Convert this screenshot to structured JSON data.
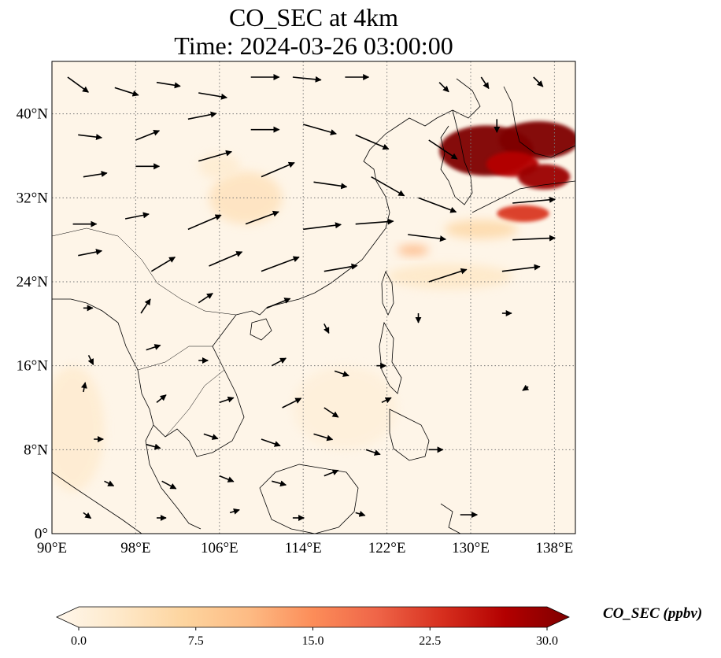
{
  "title": {
    "line1": "CO_SEC at 4km",
    "line2": "Time: 2024-03-26 03:00:00"
  },
  "map": {
    "lon_range": [
      90,
      140
    ],
    "lat_range": [
      0,
      45
    ],
    "lon_ticks": [
      90,
      98,
      106,
      114,
      122,
      130,
      138
    ],
    "lat_ticks": [
      0,
      8,
      16,
      24,
      32,
      40
    ],
    "lon_tick_labels": [
      "90°E",
      "98°E",
      "106°E",
      "114°E",
      "122°E",
      "130°E",
      "138°E"
    ],
    "lat_tick_labels": [
      "0°",
      "8°N",
      "16°N",
      "24°N",
      "32°N",
      "40°N"
    ],
    "gridlines": "dotted",
    "background_color": "#fef5e8",
    "coastline_color": "#000000"
  },
  "colorbar": {
    "label": "CO_SEC (ppbv)",
    "min": 0.0,
    "max": 30.0,
    "ticks": [
      "0.0",
      "7.5",
      "15.0",
      "22.5",
      "30.0"
    ],
    "colormap": "OrRd",
    "extend": "both",
    "colors": [
      "#fff7ec",
      "#fee8c8",
      "#fdd49e",
      "#fdbb84",
      "#fc8d59",
      "#ef6548",
      "#d7301f",
      "#b30000",
      "#7f0000"
    ]
  },
  "concentration_patches": [
    {
      "lon": 131.5,
      "lat": 36.5,
      "rx": 4.5,
      "ry": 2.4,
      "value": 30
    },
    {
      "lon": 136.5,
      "lat": 37.5,
      "rx": 3.8,
      "ry": 1.8,
      "value": 30
    },
    {
      "lon": 134.0,
      "lat": 35.2,
      "rx": 2.5,
      "ry": 1.2,
      "value": 26
    },
    {
      "lon": 137.0,
      "lat": 34.0,
      "rx": 2.5,
      "ry": 1.2,
      "value": 28
    },
    {
      "lon": 135.0,
      "lat": 30.5,
      "rx": 2.5,
      "ry": 0.8,
      "value": 22
    },
    {
      "lon": 131.0,
      "lat": 29.0,
      "rx": 3.5,
      "ry": 0.9,
      "value": 7
    },
    {
      "lon": 124.5,
      "lat": 27.0,
      "rx": 1.5,
      "ry": 0.5,
      "value": 12
    },
    {
      "lon": 108.5,
      "lat": 32.0,
      "rx": 3.5,
      "ry": 2.5,
      "value": 5
    },
    {
      "lon": 106.0,
      "lat": 35.0,
      "rx": 2.0,
      "ry": 1.2,
      "value": 3
    },
    {
      "lon": 128.0,
      "lat": 24.5,
      "rx": 6.0,
      "ry": 1.2,
      "value": 4
    },
    {
      "lon": 92.0,
      "lat": 10.0,
      "rx": 3.0,
      "ry": 6.0,
      "value": 3
    },
    {
      "lon": 118.0,
      "lat": 12.0,
      "rx": 5.0,
      "ry": 4.0,
      "value": 2
    }
  ],
  "wind_vectors": [
    {
      "lon": 91.5,
      "lat": 43.5,
      "u": 2.2,
      "v": -1.6
    },
    {
      "lon": 96.0,
      "lat": 42.5,
      "u": 2.5,
      "v": -0.8
    },
    {
      "lon": 100.0,
      "lat": 43.0,
      "u": 2.5,
      "v": -0.4
    },
    {
      "lon": 104.0,
      "lat": 42.0,
      "u": 3.0,
      "v": -0.5
    },
    {
      "lon": 109.0,
      "lat": 43.5,
      "u": 3.0,
      "v": 0.0
    },
    {
      "lon": 113.0,
      "lat": 43.5,
      "u": 3.0,
      "v": -0.3
    },
    {
      "lon": 118.0,
      "lat": 43.5,
      "u": 2.5,
      "v": 0.0
    },
    {
      "lon": 127.0,
      "lat": 43.0,
      "u": 1.0,
      "v": -1.0
    },
    {
      "lon": 131.0,
      "lat": 43.5,
      "u": 0.8,
      "v": -1.2
    },
    {
      "lon": 136.0,
      "lat": 43.5,
      "u": 1.0,
      "v": -1.0
    },
    {
      "lon": 92.5,
      "lat": 38.0,
      "u": 2.5,
      "v": -0.3
    },
    {
      "lon": 98.0,
      "lat": 37.5,
      "u": 2.5,
      "v": 1.0
    },
    {
      "lon": 103.0,
      "lat": 39.5,
      "u": 3.0,
      "v": 0.6
    },
    {
      "lon": 109.0,
      "lat": 38.5,
      "u": 3.0,
      "v": 0.0
    },
    {
      "lon": 114.0,
      "lat": 39.0,
      "u": 3.5,
      "v": -1.0
    },
    {
      "lon": 119.0,
      "lat": 38.0,
      "u": 3.5,
      "v": -1.5
    },
    {
      "lon": 126.0,
      "lat": 37.5,
      "u": 3.0,
      "v": -2.0
    },
    {
      "lon": 132.5,
      "lat": 39.5,
      "u": 0.0,
      "v": -1.4
    },
    {
      "lon": 93.0,
      "lat": 34.0,
      "u": 2.5,
      "v": 0.4
    },
    {
      "lon": 98.0,
      "lat": 35.0,
      "u": 2.5,
      "v": 0.0
    },
    {
      "lon": 104.0,
      "lat": 35.5,
      "u": 3.5,
      "v": 1.0
    },
    {
      "lon": 110.0,
      "lat": 34.0,
      "u": 3.5,
      "v": 1.5
    },
    {
      "lon": 115.0,
      "lat": 33.5,
      "u": 3.5,
      "v": -0.5
    },
    {
      "lon": 120.5,
      "lat": 34.0,
      "u": 3.5,
      "v": -2.0
    },
    {
      "lon": 125.0,
      "lat": 32.0,
      "u": 4.0,
      "v": -1.5
    },
    {
      "lon": 134.0,
      "lat": 31.5,
      "u": 4.5,
      "v": 0.4
    },
    {
      "lon": 92.0,
      "lat": 29.5,
      "u": 2.5,
      "v": 0.0
    },
    {
      "lon": 97.0,
      "lat": 30.0,
      "u": 2.5,
      "v": 0.5
    },
    {
      "lon": 103.0,
      "lat": 29.0,
      "u": 3.5,
      "v": 1.5
    },
    {
      "lon": 108.5,
      "lat": 29.5,
      "u": 3.5,
      "v": 1.3
    },
    {
      "lon": 114.0,
      "lat": 29.0,
      "u": 4.0,
      "v": 0.5
    },
    {
      "lon": 119.0,
      "lat": 29.5,
      "u": 4.0,
      "v": 0.3
    },
    {
      "lon": 124.0,
      "lat": 28.5,
      "u": 4.0,
      "v": -0.5
    },
    {
      "lon": 134.0,
      "lat": 28.0,
      "u": 4.5,
      "v": 0.2
    },
    {
      "lon": 92.5,
      "lat": 26.5,
      "u": 2.5,
      "v": 0.5
    },
    {
      "lon": 99.5,
      "lat": 25.0,
      "u": 2.5,
      "v": 1.5
    },
    {
      "lon": 105.0,
      "lat": 25.5,
      "u": 3.5,
      "v": 1.5
    },
    {
      "lon": 110.0,
      "lat": 25.0,
      "u": 4.0,
      "v": 1.5
    },
    {
      "lon": 116.0,
      "lat": 25.0,
      "u": 3.5,
      "v": 0.6
    },
    {
      "lon": 126.0,
      "lat": 24.0,
      "u": 4.0,
      "v": 1.3
    },
    {
      "lon": 133.0,
      "lat": 25.0,
      "u": 4.0,
      "v": 0.5
    },
    {
      "lon": 93.0,
      "lat": 21.5,
      "u": 1.0,
      "v": 0.0
    },
    {
      "lon": 98.5,
      "lat": 21.0,
      "u": 1.0,
      "v": 1.5
    },
    {
      "lon": 104.0,
      "lat": 22.0,
      "u": 1.5,
      "v": 1.0
    },
    {
      "lon": 110.5,
      "lat": 21.5,
      "u": 2.5,
      "v": 1.0
    },
    {
      "lon": 116.0,
      "lat": 20.0,
      "u": 0.5,
      "v": -1.0
    },
    {
      "lon": 125.0,
      "lat": 21.0,
      "u": 0.0,
      "v": -1.0
    },
    {
      "lon": 133.0,
      "lat": 21.0,
      "u": 1.0,
      "v": 0.0
    },
    {
      "lon": 93.5,
      "lat": 17.0,
      "u": 0.5,
      "v": -1.0
    },
    {
      "lon": 99.0,
      "lat": 17.5,
      "u": 1.5,
      "v": 0.5
    },
    {
      "lon": 104.0,
      "lat": 16.5,
      "u": 1.0,
      "v": 0.0
    },
    {
      "lon": 111.0,
      "lat": 16.0,
      "u": 1.5,
      "v": 0.8
    },
    {
      "lon": 117.0,
      "lat": 15.5,
      "u": 1.5,
      "v": -0.5
    },
    {
      "lon": 121.0,
      "lat": 16.0,
      "u": 1.0,
      "v": 0.0
    },
    {
      "lon": 135.5,
      "lat": 14.0,
      "u": -0.6,
      "v": -0.4
    },
    {
      "lon": 93.0,
      "lat": 13.5,
      "u": 0.2,
      "v": 1.0
    },
    {
      "lon": 100.0,
      "lat": 12.5,
      "u": 1.0,
      "v": 0.8
    },
    {
      "lon": 106.0,
      "lat": 12.5,
      "u": 1.5,
      "v": 0.5
    },
    {
      "lon": 112.0,
      "lat": 12.0,
      "u": 2.0,
      "v": 1.0
    },
    {
      "lon": 116.0,
      "lat": 12.0,
      "u": 1.5,
      "v": -1.0
    },
    {
      "lon": 121.5,
      "lat": 12.5,
      "u": 1.0,
      "v": 0.5
    },
    {
      "lon": 94.0,
      "lat": 9.0,
      "u": 1.0,
      "v": 0.0
    },
    {
      "lon": 99.0,
      "lat": 8.5,
      "u": 1.5,
      "v": -0.4
    },
    {
      "lon": 104.5,
      "lat": 9.5,
      "u": 1.5,
      "v": -0.5
    },
    {
      "lon": 110.0,
      "lat": 9.0,
      "u": 2.0,
      "v": -0.7
    },
    {
      "lon": 115.0,
      "lat": 9.5,
      "u": 2.0,
      "v": -0.6
    },
    {
      "lon": 120.0,
      "lat": 8.0,
      "u": 1.5,
      "v": -0.5
    },
    {
      "lon": 126.0,
      "lat": 8.0,
      "u": 1.5,
      "v": 0.0
    },
    {
      "lon": 95.0,
      "lat": 5.0,
      "u": 1.0,
      "v": -0.5
    },
    {
      "lon": 100.5,
      "lat": 5.0,
      "u": 1.5,
      "v": -0.8
    },
    {
      "lon": 106.0,
      "lat": 5.5,
      "u": 1.5,
      "v": -0.6
    },
    {
      "lon": 111.0,
      "lat": 5.0,
      "u": 1.5,
      "v": -0.4
    },
    {
      "lon": 116.0,
      "lat": 5.5,
      "u": 1.5,
      "v": 0.6
    },
    {
      "lon": 93.0,
      "lat": 2.0,
      "u": 0.8,
      "v": -0.6
    },
    {
      "lon": 100.0,
      "lat": 1.5,
      "u": 1.0,
      "v": 0.0
    },
    {
      "lon": 107.0,
      "lat": 2.0,
      "u": 1.0,
      "v": 0.3
    },
    {
      "lon": 113.0,
      "lat": 1.5,
      "u": 1.2,
      "v": 0.0
    },
    {
      "lon": 119.0,
      "lat": 2.0,
      "u": 1.0,
      "v": -0.3
    },
    {
      "lon": 129.0,
      "lat": 1.8,
      "u": 1.8,
      "v": 0.0
    }
  ]
}
